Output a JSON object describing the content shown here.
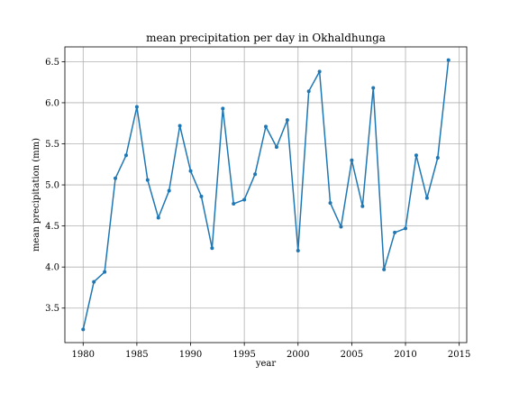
{
  "chart_data": {
    "type": "line",
    "title": "mean precipitation per day in Okhaldhunga",
    "xlabel": "year",
    "ylabel": "mean precipitation (mm)",
    "xlim": [
      1978.3,
      2015.7
    ],
    "ylim": [
      3.08,
      6.68
    ],
    "xticks": [
      1980,
      1985,
      1990,
      1995,
      2000,
      2005,
      2010,
      2015
    ],
    "yticks": [
      3.5,
      4.0,
      4.5,
      5.0,
      5.5,
      6.0,
      6.5
    ],
    "xtick_labels": [
      "1980",
      "1985",
      "1990",
      "1995",
      "2000",
      "2005",
      "2010",
      "2015"
    ],
    "ytick_labels": [
      "3.5",
      "4.0",
      "4.5",
      "5.0",
      "5.5",
      "6.0",
      "6.5"
    ],
    "grid": true,
    "marker": "dot",
    "color": "#1f77b4",
    "series": [
      {
        "x": [
          1980,
          1981,
          1982,
          1983,
          1984,
          1985,
          1986,
          1987,
          1988,
          1989,
          1990,
          1991,
          1992,
          1993,
          1994,
          1995,
          1996,
          1997,
          1998,
          1999,
          2000,
          2001,
          2002,
          2003,
          2004,
          2005,
          2006,
          2007,
          2008,
          2009,
          2010,
          2011,
          2012,
          2013,
          2014
        ],
        "y": [
          3.24,
          3.82,
          3.94,
          5.08,
          5.36,
          5.95,
          5.06,
          4.6,
          4.93,
          5.72,
          5.17,
          4.86,
          4.23,
          5.93,
          4.77,
          4.82,
          5.13,
          5.71,
          5.46,
          5.79,
          4.2,
          6.14,
          6.38,
          4.78,
          4.49,
          5.3,
          4.74,
          6.18,
          3.97,
          4.42,
          4.47,
          5.36,
          4.84,
          5.33,
          6.52
        ]
      }
    ]
  }
}
